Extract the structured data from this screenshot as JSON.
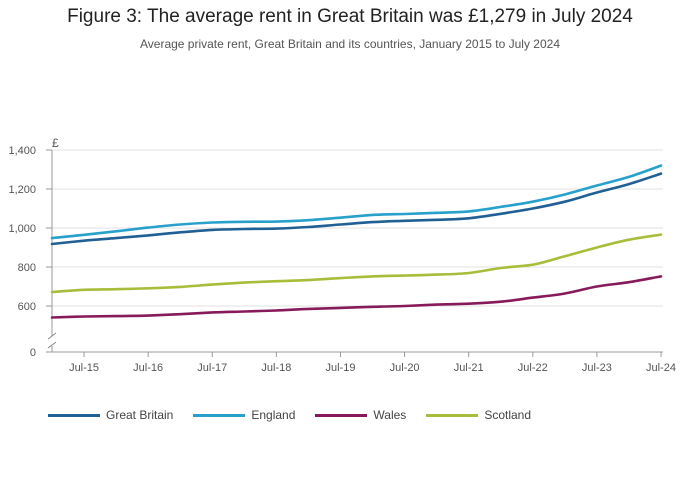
{
  "header": {
    "title": "Figure 3: The average rent in Great Britain was £1,279 in July 2024",
    "subtitle": "Average private rent, Great Britain and its countries, January 2015 to July 2024"
  },
  "chart_data": {
    "type": "line",
    "title": "Figure 3: The average rent in Great Britain was £1,279 in July 2024",
    "subtitle": "Average private rent, Great Britain and its countries, January 2015 to July 2024",
    "ylabel": "£",
    "x_ticks": [
      "Jul-15",
      "Jul-16",
      "Jul-17",
      "Jul-18",
      "Jul-19",
      "Jul-20",
      "Jul-21",
      "Jul-22",
      "Jul-23",
      "Jul-24"
    ],
    "y_ticks": [
      0,
      600,
      800,
      1000,
      1200,
      1400
    ],
    "y_tick_labels": [
      "0",
      "600",
      "800",
      "1,000",
      "1,200",
      "1,400"
    ],
    "ylim": [
      0,
      1400
    ],
    "y_axis_break": true,
    "x_range": [
      "Jan-15",
      "Jul-24"
    ],
    "grid": "horizontal",
    "legend_position": "bottom-left",
    "x": [
      "Jan-15",
      "Jul-15",
      "Jan-16",
      "Jul-16",
      "Jan-17",
      "Jul-17",
      "Jan-18",
      "Jul-18",
      "Jan-19",
      "Jul-19",
      "Jan-20",
      "Jul-20",
      "Jan-21",
      "Jul-21",
      "Jan-22",
      "Jul-22",
      "Jan-23",
      "Jul-23",
      "Jan-24",
      "Jul-24"
    ],
    "series": [
      {
        "name": "Great Britain",
        "color": "#206095",
        "values": [
          918,
          935,
          948,
          962,
          978,
          990,
          995,
          997,
          1005,
          1018,
          1030,
          1037,
          1042,
          1050,
          1073,
          1100,
          1135,
          1182,
          1225,
          1279
        ]
      },
      {
        "name": "England",
        "color": "#27a0cc",
        "values": [
          948,
          965,
          983,
          1002,
          1018,
          1028,
          1032,
          1033,
          1040,
          1053,
          1067,
          1072,
          1078,
          1085,
          1108,
          1135,
          1172,
          1218,
          1262,
          1320
        ]
      },
      {
        "name": "Wales",
        "color": "#871a5b",
        "values": [
          541,
          546,
          548,
          551,
          558,
          567,
          572,
          577,
          585,
          590,
          596,
          600,
          607,
          612,
          622,
          643,
          664,
          700,
          722,
          752
        ]
      },
      {
        "name": "Scotland",
        "color": "#a8bd3a",
        "values": [
          672,
          683,
          686,
          691,
          698,
          710,
          720,
          727,
          733,
          743,
          752,
          756,
          761,
          769,
          795,
          812,
          855,
          900,
          940,
          966
        ]
      }
    ]
  }
}
